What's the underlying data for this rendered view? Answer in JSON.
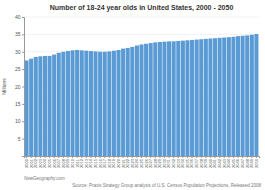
{
  "chart_data": {
    "type": "bar",
    "title": "Number of 18-24 year olds in United States, 2000 - 2050",
    "ylabel": "Millions",
    "annotations": [
      "NewGeography.com",
      "Source: Praxis Strategy Group analysis of U.S. Census Population Projections, Released 2008"
    ],
    "categories": [
      "2000",
      "2001",
      "2002",
      "2003",
      "2004",
      "2005",
      "2006",
      "2007",
      "2008",
      "2009",
      "2010",
      "2011",
      "2012",
      "2013",
      "2014",
      "2015",
      "2016",
      "2017",
      "2018",
      "2019",
      "2020",
      "2021",
      "2022",
      "2023",
      "2024",
      "2025",
      "2026",
      "2027",
      "2028",
      "2029",
      "2030",
      "2031",
      "2032",
      "2033",
      "2034",
      "2035",
      "2036",
      "2037",
      "2038",
      "2039",
      "2040",
      "2041",
      "2042",
      "2043",
      "2044",
      "2045",
      "2046",
      "2047",
      "2048",
      "2049",
      "2050"
    ],
    "values": [
      27.5,
      28.0,
      28.5,
      28.7,
      28.8,
      28.8,
      29.2,
      29.7,
      30.0,
      30.2,
      30.4,
      30.5,
      30.4,
      30.3,
      30.2,
      30.1,
      30.0,
      30.0,
      30.1,
      30.3,
      30.5,
      30.9,
      31.1,
      31.4,
      31.8,
      32.1,
      32.3,
      32.5,
      32.7,
      32.8,
      32.9,
      33.0,
      33.0,
      33.1,
      33.2,
      33.3,
      33.4,
      33.5,
      33.6,
      33.7,
      33.8,
      33.9,
      34.0,
      34.1,
      34.2,
      34.3,
      34.5,
      34.6,
      34.7,
      34.9,
      35.1
    ],
    "color": "#5b9bd5",
    "ylim": [
      0,
      40
    ],
    "yticks": [
      5,
      10,
      15,
      20,
      25,
      30,
      35,
      40
    ],
    "grid": true
  }
}
